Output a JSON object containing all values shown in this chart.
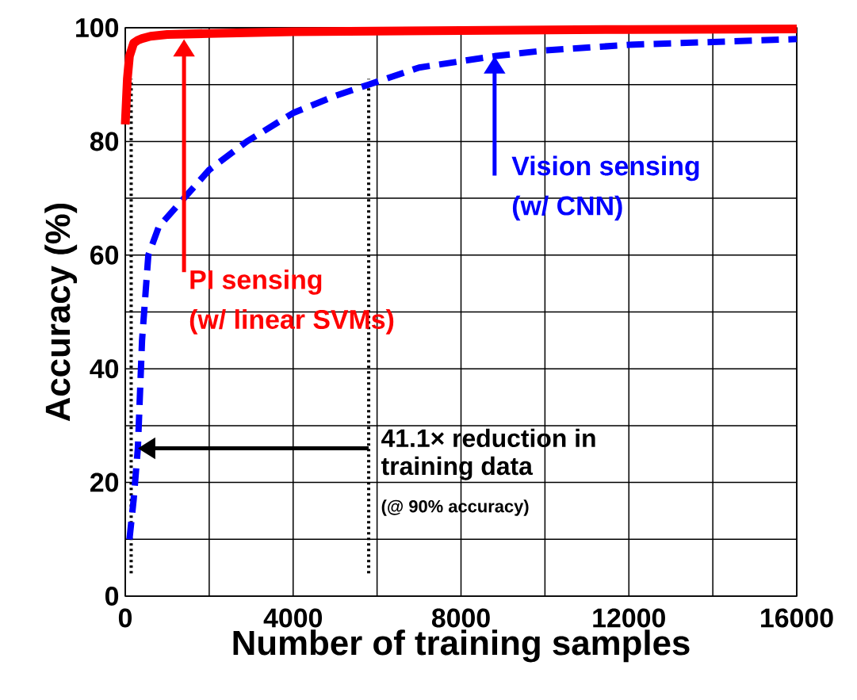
{
  "chart_data": {
    "type": "line",
    "xlabel": "Number of training samples",
    "ylabel": "Accuracy (%)",
    "xlim": [
      0,
      16000
    ],
    "ylim": [
      0,
      100
    ],
    "xticks": [
      0,
      {
        "value": 2000,
        "label": null
      },
      4000,
      {
        "value": 6000,
        "label": null
      },
      8000,
      {
        "value": 10000,
        "label": null
      },
      12000,
      {
        "value": 14000,
        "label": null
      },
      16000
    ],
    "yticks": [
      0,
      {
        "value": 10,
        "label": null
      },
      20,
      {
        "value": 30,
        "label": null
      },
      40,
      {
        "value": 50,
        "label": null
      },
      60,
      {
        "value": 70,
        "label": null
      },
      80,
      {
        "value": 90,
        "label": null
      },
      100
    ],
    "grid": true,
    "marker": "none",
    "series": [
      {
        "color": "#ff0000",
        "line_style": "solid",
        "x": [
          0,
          50,
          100,
          200,
          300,
          400,
          600,
          1000,
          2000,
          4000,
          8000,
          12000,
          16000
        ],
        "values": [
          83,
          91,
          95,
          97.3,
          97.8,
          98.1,
          98.5,
          98.8,
          99,
          99.3,
          99.5,
          99.7,
          99.8
        ]
      },
      {
        "color": "#0000ff",
        "line_style": "dashed",
        "x": [
          100,
          200,
          300,
          400,
          550,
          800,
          1400,
          2000,
          2900,
          4000,
          5000,
          5800,
          7000,
          8800,
          10000,
          12000,
          14000,
          16000
        ],
        "values": [
          10,
          17,
          26,
          45,
          60,
          65,
          70,
          75,
          80,
          85,
          88,
          90,
          93,
          95,
          96,
          97,
          97.5,
          98
        ]
      }
    ],
    "ref_lines": [
      {
        "axis": "x",
        "value": 141,
        "line_style": "dotted",
        "color": "#000000"
      },
      {
        "axis": "x",
        "value": 5800,
        "line_style": "dotted",
        "color": "#000000"
      }
    ],
    "annotations": [
      "PI sensing",
      "(w/ linear SVMs)",
      "Vision sensing",
      "(w/ CNN)",
      "41.1× reduction in",
      "training data",
      "(@ 90% accuracy)"
    ]
  }
}
